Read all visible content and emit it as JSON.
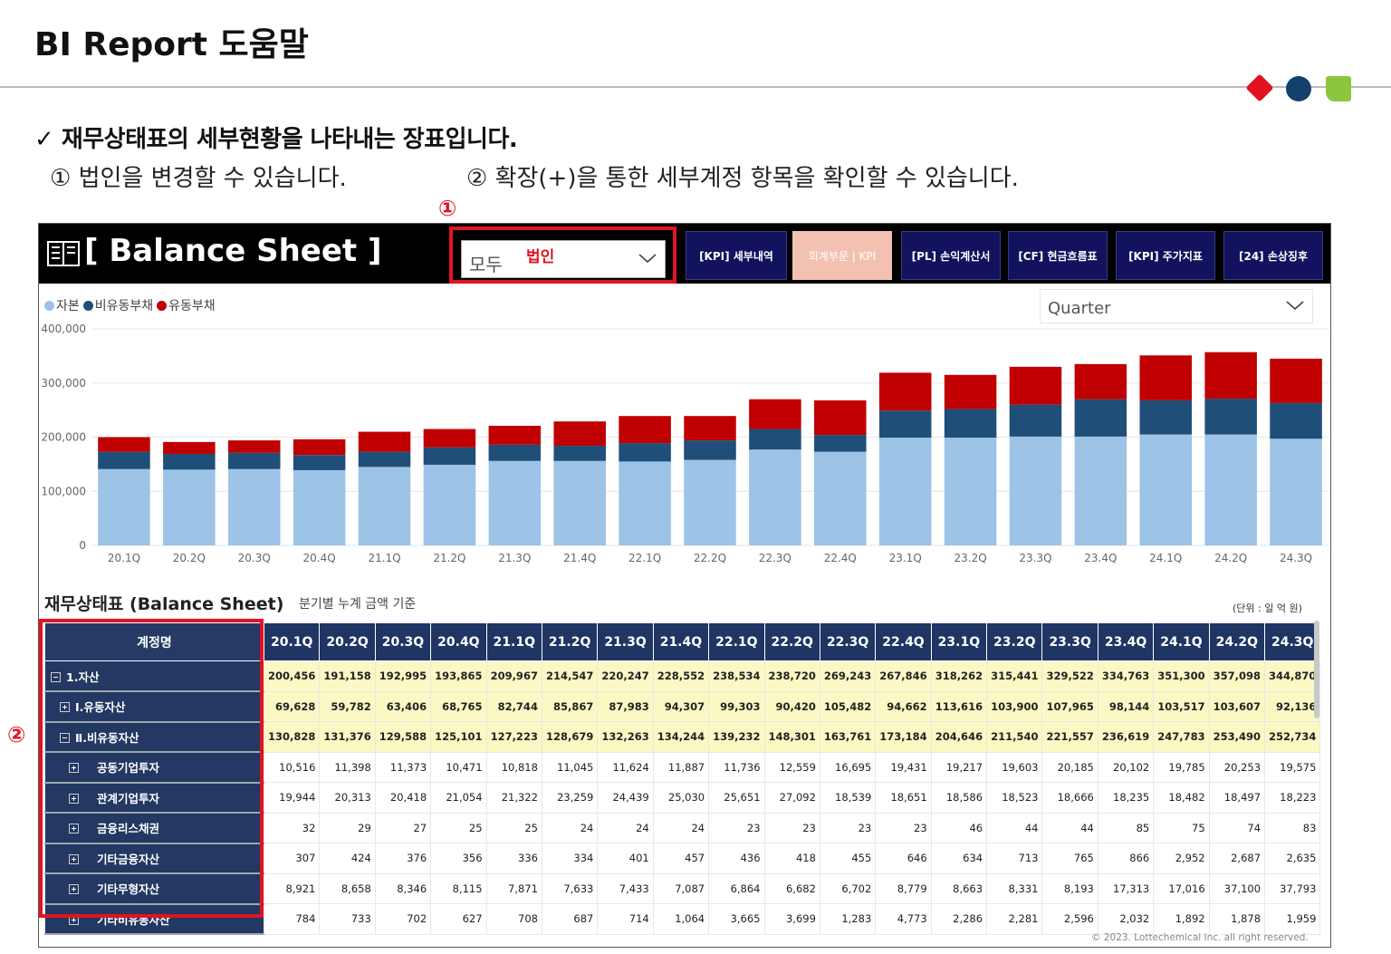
{
  "page": {
    "title": "BI Report 도움말",
    "heading": "✓  재무상태표의 세부현황을 나타내는 장표입니다.",
    "desc1": "① 법인을 변경할 수 있습니다.",
    "desc2": "② 확장(+)을 통한 세부계정 항목을 확인할 수 있습니다.",
    "marker1": "①",
    "marker2": "②",
    "colors": {
      "red": "#e1131f",
      "navy": "#14406e",
      "green": "#8cc63e"
    }
  },
  "report": {
    "title": "[ Balance Sheet ]",
    "corp_select": {
      "value": "모두",
      "label": "법인"
    },
    "nav": [
      {
        "label": "[KPI] 세부내역",
        "active": false
      },
      {
        "label": "회계부문 | KPI",
        "active": true
      },
      {
        "label": "[PL] 손익계산서",
        "active": false
      },
      {
        "label": "[CF] 현금흐름표",
        "active": false
      },
      {
        "label": "[KPI] 주가지표",
        "active": false
      },
      {
        "label": "[24] 손상징후",
        "active": false
      }
    ],
    "period_select": {
      "value": "Quarter"
    },
    "copyright": "© 2023. Lottechemical Inc. all right reserved."
  },
  "chart_data": {
    "type": "bar",
    "stacked": true,
    "categories": [
      "20.1Q",
      "20.2Q",
      "20.3Q",
      "20.4Q",
      "21.1Q",
      "21.2Q",
      "21.3Q",
      "21.4Q",
      "22.1Q",
      "22.2Q",
      "22.3Q",
      "22.4Q",
      "23.1Q",
      "23.2Q",
      "23.3Q",
      "23.4Q",
      "24.1Q",
      "24.2Q",
      "24.3Q"
    ],
    "series": [
      {
        "name": "자본",
        "color": "#9dc3e6",
        "values": [
          141000,
          140000,
          141000,
          139000,
          145000,
          149000,
          156000,
          156000,
          155000,
          158000,
          177000,
          173000,
          199000,
          199000,
          201000,
          201000,
          205000,
          205000,
          197000
        ]
      },
      {
        "name": "비유동부채",
        "color": "#1f4e79",
        "values": [
          32000,
          29000,
          30000,
          28000,
          28000,
          32000,
          30000,
          28000,
          34000,
          36000,
          38000,
          31000,
          50000,
          53000,
          59000,
          69000,
          63000,
          66000,
          66000
        ]
      },
      {
        "name": "유동부채",
        "color": "#c00000",
        "values": [
          27000,
          22000,
          23000,
          29000,
          37000,
          34000,
          35000,
          45000,
          50000,
          45000,
          55000,
          64000,
          70000,
          63000,
          70000,
          65000,
          83000,
          86000,
          82000
        ]
      }
    ],
    "ylim": [
      0,
      400000
    ],
    "yticks": [
      "0",
      "100,000",
      "200,000",
      "300,000",
      "400,000"
    ],
    "grid": true,
    "legend": "top-left"
  },
  "table": {
    "title": "재무상태표 (Balance Sheet)",
    "subtitle": "분기별 누계 금액 기준",
    "unit": "(단위 : 일 억 원)",
    "account_header": "계정명",
    "columns": [
      "20.1Q",
      "20.2Q",
      "20.3Q",
      "20.4Q",
      "21.1Q",
      "21.2Q",
      "21.3Q",
      "21.4Q",
      "22.1Q",
      "22.2Q",
      "22.3Q",
      "22.4Q",
      "23.1Q",
      "23.2Q",
      "23.3Q",
      "23.4Q",
      "24.1Q",
      "24.2Q",
      "24.3Q"
    ],
    "rows": [
      {
        "label": "1.자산",
        "expand": "minus",
        "level": 0,
        "highlight": true,
        "values": [
          "200,456",
          "191,158",
          "192,995",
          "193,865",
          "209,967",
          "214,547",
          "220,247",
          "228,552",
          "238,534",
          "238,720",
          "269,243",
          "267,846",
          "318,262",
          "315,441",
          "329,522",
          "334,763",
          "351,300",
          "357,098",
          "344,870"
        ]
      },
      {
        "label": "Ⅰ.유동자산",
        "expand": "plus",
        "level": 1,
        "highlight": true,
        "values": [
          "69,628",
          "59,782",
          "63,406",
          "68,765",
          "82,744",
          "85,867",
          "87,983",
          "94,307",
          "99,303",
          "90,420",
          "105,482",
          "94,662",
          "113,616",
          "103,900",
          "107,965",
          "98,144",
          "103,517",
          "103,607",
          "92,136"
        ]
      },
      {
        "label": "Ⅱ.비유동자산",
        "expand": "minus",
        "level": 1,
        "highlight": true,
        "values": [
          "130,828",
          "131,376",
          "129,588",
          "125,101",
          "127,223",
          "128,679",
          "132,263",
          "134,244",
          "139,232",
          "148,301",
          "163,761",
          "173,184",
          "204,646",
          "211,540",
          "221,557",
          "236,619",
          "247,783",
          "253,490",
          "252,734"
        ]
      },
      {
        "label": "공동기업투자",
        "expand": "plus",
        "level": 2,
        "highlight": false,
        "values": [
          "10,516",
          "11,398",
          "11,373",
          "10,471",
          "10,818",
          "11,045",
          "11,624",
          "11,887",
          "11,736",
          "12,559",
          "16,695",
          "19,431",
          "19,217",
          "19,603",
          "20,185",
          "20,102",
          "19,785",
          "20,253",
          "19,575"
        ]
      },
      {
        "label": "관계기업투자",
        "expand": "plus",
        "level": 2,
        "highlight": false,
        "values": [
          "19,944",
          "20,313",
          "20,418",
          "21,054",
          "21,322",
          "23,259",
          "24,439",
          "25,030",
          "25,651",
          "27,092",
          "18,539",
          "18,651",
          "18,586",
          "18,523",
          "18,666",
          "18,235",
          "18,482",
          "18,497",
          "18,223"
        ]
      },
      {
        "label": "금융리스채권",
        "expand": "plus",
        "level": 2,
        "highlight": false,
        "values": [
          "32",
          "29",
          "27",
          "25",
          "25",
          "24",
          "24",
          "24",
          "23",
          "23",
          "23",
          "23",
          "46",
          "44",
          "44",
          "85",
          "75",
          "74",
          "83"
        ]
      },
      {
        "label": "기타금융자산",
        "expand": "plus",
        "level": 2,
        "highlight": false,
        "values": [
          "307",
          "424",
          "376",
          "356",
          "336",
          "334",
          "401",
          "457",
          "436",
          "418",
          "455",
          "646",
          "634",
          "713",
          "765",
          "866",
          "2,952",
          "2,687",
          "2,635"
        ]
      },
      {
        "label": "기타무형자산",
        "expand": "plus",
        "level": 2,
        "highlight": false,
        "values": [
          "8,921",
          "8,658",
          "8,346",
          "8,115",
          "7,871",
          "7,633",
          "7,433",
          "7,087",
          "6,864",
          "6,682",
          "6,702",
          "8,779",
          "8,663",
          "8,331",
          "8,193",
          "17,313",
          "17,016",
          "37,100",
          "37,793"
        ]
      },
      {
        "label": "기타비유동자산",
        "expand": "plus",
        "level": 2,
        "highlight": false,
        "values": [
          "784",
          "733",
          "702",
          "627",
          "708",
          "687",
          "714",
          "1,064",
          "3,665",
          "3,699",
          "1,283",
          "4,773",
          "2,286",
          "2,281",
          "2,596",
          "2,032",
          "1,892",
          "1,878",
          "1,959"
        ]
      }
    ]
  }
}
